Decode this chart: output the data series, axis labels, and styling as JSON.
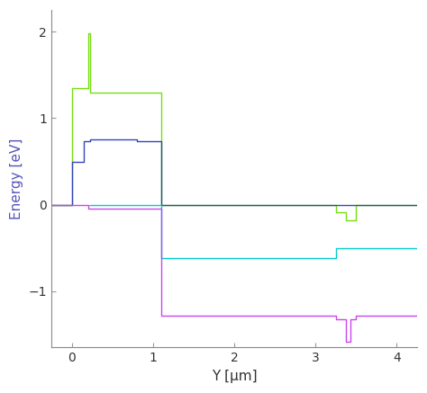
{
  "title": "",
  "xlabel": "Y [μm]",
  "ylabel": "Energy [eV]",
  "xlim": [
    -0.25,
    4.25
  ],
  "ylim": [
    -1.65,
    2.25
  ],
  "background_color": "#ffffff",
  "ylabel_color": "#5555bb",
  "xlabel_color": "#333333",
  "lines": {
    "green": {
      "color": "#77dd11",
      "x": [
        -0.25,
        0.0,
        0.0,
        0.2,
        0.2,
        0.23,
        0.23,
        1.1,
        1.1,
        3.25,
        3.25,
        3.38,
        3.38,
        3.5,
        3.5,
        4.25
      ],
      "y": [
        0.0,
        0.0,
        1.35,
        1.35,
        1.98,
        1.98,
        1.3,
        1.3,
        0.0,
        0.0,
        -0.09,
        -0.09,
        -0.18,
        -0.18,
        0.0,
        0.0
      ]
    },
    "blue": {
      "color": "#3344bb",
      "x": [
        -0.25,
        0.0,
        0.0,
        0.15,
        0.15,
        0.23,
        0.23,
        0.8,
        0.8,
        1.1,
        1.1,
        4.25
      ],
      "y": [
        0.0,
        0.0,
        0.5,
        0.5,
        0.73,
        0.73,
        0.76,
        0.76,
        0.73,
        0.73,
        0.0,
        0.0
      ]
    },
    "cyan": {
      "color": "#00cccc",
      "x": [
        0.23,
        1.1,
        1.1,
        3.25,
        3.25,
        4.25
      ],
      "y": [
        0.0,
        0.0,
        -0.62,
        -0.62,
        -0.5,
        -0.5
      ]
    },
    "purple": {
      "color": "#cc44ee",
      "x": [
        -0.25,
        0.2,
        0.2,
        1.1,
        1.1,
        3.25,
        3.25,
        3.38,
        3.38,
        3.43,
        3.43,
        3.5,
        3.5,
        4.25
      ],
      "y": [
        0.0,
        0.0,
        -0.05,
        -0.05,
        -1.28,
        -1.28,
        -1.32,
        -1.32,
        -1.58,
        -1.58,
        -1.32,
        -1.32,
        -1.28,
        -1.28
      ]
    }
  },
  "tick_params": {
    "xticks": [
      0,
      1,
      2,
      3,
      4
    ],
    "yticks": [
      -1,
      0,
      1,
      2
    ]
  },
  "figsize": [
    4.74,
    4.37
  ],
  "dpi": 100
}
